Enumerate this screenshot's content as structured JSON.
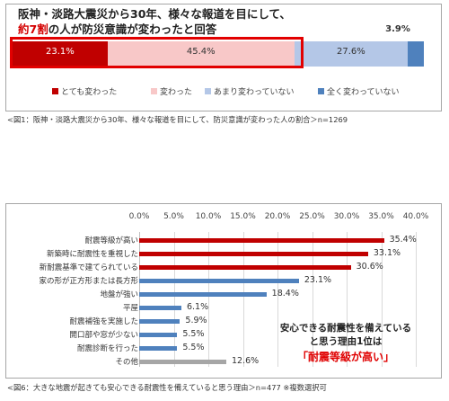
{
  "chart_data": [
    {
      "type": "bar",
      "orientation": "horizontal-stacked",
      "title_line1": "阪神・淡路大震災から30年、様々な報道を目にして、",
      "title_line2_highlight": "約7割",
      "title_line2_rest": "の人が防災意識が変わったと回答",
      "series": [
        {
          "name": "とても変わった",
          "value": 23.1,
          "label": "23.1%",
          "color": "#c00000",
          "text_color": "#ffffff"
        },
        {
          "name": "変わった",
          "value": 45.4,
          "label": "45.4%",
          "color": "#f8c8c8",
          "text_color": "#333333"
        },
        {
          "name": "あまり変わっていない",
          "value": 27.6,
          "label": "27.6%",
          "color": "#b4c7e7",
          "text_color": "#333333"
        },
        {
          "name": "全く変わっていない",
          "value": 3.9,
          "label": "3.9%",
          "color": "#4f81bd",
          "text_color": "#333333"
        }
      ],
      "caption": "<図1：阪神・淡路大震災から30年、様々な報道を目にして、防災意識が変わった人の割合＞n=1269"
    },
    {
      "type": "bar",
      "orientation": "horizontal",
      "xlim": [
        0,
        40
      ],
      "x_ticks": [
        "0.0%",
        "5.0%",
        "10.0%",
        "15.0%",
        "20.0%",
        "25.0%",
        "30.0%",
        "35.0%",
        "40.0%"
      ],
      "x_tick_values": [
        0,
        5,
        10,
        15,
        20,
        25,
        30,
        35,
        40
      ],
      "grid": true,
      "categories": [
        "耐震等級が高い",
        "新築時に耐震性を重視した",
        "新耐震基準で建てられている",
        "家の形が正方形または長方形",
        "地盤が強い",
        "平屋",
        "耐震補強を実施した",
        "開口部や窓が少ない",
        "耐震診断を行った",
        "その他"
      ],
      "values": [
        35.4,
        33.1,
        30.6,
        23.1,
        18.4,
        6.1,
        5.9,
        5.5,
        5.5,
        12.6
      ],
      "labels": [
        "35.4%",
        "33.1%",
        "30.6%",
        "23.1%",
        "18.4%",
        "6.1%",
        "5.9%",
        "5.5%",
        "5.5%",
        "12.6%"
      ],
      "colors": [
        "#c00000",
        "#c00000",
        "#c00000",
        "#4f81bd",
        "#4f81bd",
        "#4f81bd",
        "#4f81bd",
        "#4f81bd",
        "#4f81bd",
        "#a6a6a6"
      ],
      "callout_line1": "安心できる耐震性を備えている",
      "callout_line2": "と思う理由1位は",
      "callout_highlight": "「耐震等級が高い」",
      "caption": "<図6：大きな地震が起きても安心できる耐震性を備えていると思う理由＞n=477 ※複数選択可"
    }
  ]
}
